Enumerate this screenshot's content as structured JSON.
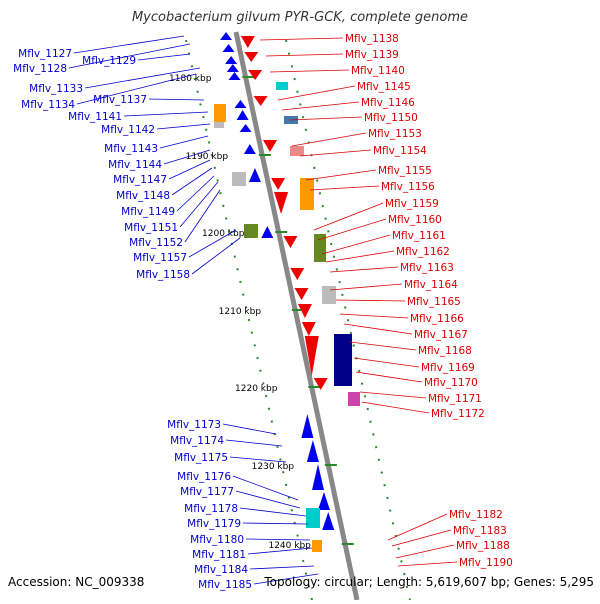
{
  "title": "Mycobacterium gilvum PYR-GCK, complete genome",
  "accession": "Accession: NC_009338",
  "topology": "Topology: circular; Length: 5,619,607 bp; Genes: 5,295",
  "colors": {
    "left_label": "#0000cc",
    "right_label": "#dd0000",
    "backbone": "#888888",
    "tick": "#2a8a2a"
  },
  "kbp_ticks": [
    "1180 kbp",
    "1190 kbp",
    "1200 kbp",
    "1210 kbp",
    "1220 kbp",
    "1230 kbp",
    "1240 kbp"
  ],
  "left_genes": [
    "Mflv_1127",
    "Mflv_1128",
    "Mflv_1129",
    "Mflv_1133",
    "Mflv_1134",
    "Mflv_1137",
    "Mflv_1141",
    "Mflv_1142",
    "Mflv_1143",
    "Mflv_1144",
    "Mflv_1147",
    "Mflv_1148",
    "Mflv_1149",
    "Mflv_1151",
    "Mflv_1152",
    "Mflv_1157",
    "Mflv_1158",
    "Mflv_1173",
    "Mflv_1174",
    "Mflv_1175",
    "Mflv_1176",
    "Mflv_1177",
    "Mflv_1178",
    "Mflv_1179",
    "Mflv_1180",
    "Mflv_1181",
    "Mflv_1184",
    "Mflv_1185"
  ],
  "right_genes": [
    "Mflv_1138",
    "Mflv_1139",
    "Mflv_1140",
    "Mflv_1145",
    "Mflv_1146",
    "Mflv_1150",
    "Mflv_1153",
    "Mflv_1154",
    "Mflv_1155",
    "Mflv_1156",
    "Mflv_1159",
    "Mflv_1160",
    "Mflv_1161",
    "Mflv_1162",
    "Mflv_1163",
    "Mflv_1164",
    "Mflv_1165",
    "Mflv_1166",
    "Mflv_1167",
    "Mflv_1168",
    "Mflv_1169",
    "Mflv_1170",
    "Mflv_1171",
    "Mflv_1172",
    "Mflv_1182",
    "Mflv_1183",
    "Mflv_1188",
    "Mflv_1190"
  ]
}
